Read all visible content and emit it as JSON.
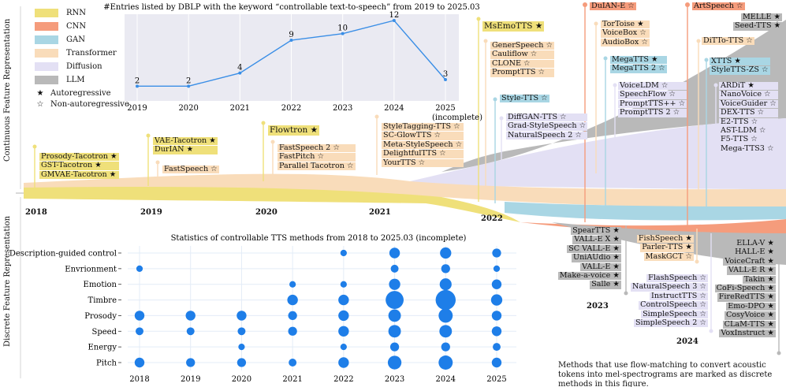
{
  "side_labels": {
    "continuous": "Continuous Feature Representation",
    "discrete": "Discrete Feature Representation"
  },
  "legend": {
    "items": [
      {
        "name": "RNN",
        "color": "#efe07a"
      },
      {
        "name": "CNN",
        "color": "#f59c7c"
      },
      {
        "name": "GAN",
        "color": "#a9d6e4"
      },
      {
        "name": "Transformer",
        "color": "#f9dcba"
      },
      {
        "name": "Diffusion",
        "color": "#e3e0f4"
      },
      {
        "name": "LLM",
        "color": "#b9b9b9"
      }
    ],
    "autoregressive": "Autoregressive",
    "non_autoregressive": "Non-autoregressive",
    "ar_symbol": "★",
    "nar_symbol": "☆"
  },
  "timeline_years": [
    "2018",
    "2019",
    "2020",
    "2021",
    "2022",
    "2023",
    "2024"
  ],
  "continuous_methods": {
    "y2018": [
      "Prosody-Tacotron ★",
      "GST-Tacotron ★",
      "GMVAE-Tacotron ★"
    ],
    "y2019a": [
      "VAE-Tacotron ★",
      "DurIAN ★"
    ],
    "y2019b": [
      "FastSpeech ☆"
    ],
    "y2020a": [
      "Flowtron ★"
    ],
    "y2020b": [
      "FastSpeech 2 ☆",
      "FastPitch ☆",
      "Parallel Tacotron ☆"
    ],
    "y2021": [
      "StyleTagging-TTS ☆",
      "SC-GlowTTS ☆",
      "Meta-StyleSpeech ☆",
      "DelightfulTTS ☆",
      "YourTTS ☆"
    ],
    "y2022a": [
      "MsEmoTTS ★"
    ],
    "y2022b": [
      "GenerSpeech ☆",
      "Cauliflow ☆",
      "CLONE ☆",
      "PromptTTS ☆"
    ],
    "y2022c": [
      "Style-TTS ☆"
    ],
    "y2022d": [
      "DiffGAN-TTS ☆",
      "Grad-StyleSpeech ☆",
      "NaturalSpeech 2 ☆"
    ],
    "y2023a": [
      "DuIAN-E ☆"
    ],
    "y2023b": [
      "TorToise ★",
      "VoiceBox ☆",
      "AudioBox ☆"
    ],
    "y2023c": [
      "MegaTTS ★",
      "MegaTTS 2 ☆"
    ],
    "y2023d": [
      "VoiceLDM ☆",
      "SpeechFlow ☆",
      "PromptTTS++ ☆",
      "PromptTTS 2 ☆"
    ],
    "y2024a": [
      "ArtSpeech ☆"
    ],
    "y2024b": [
      "DiTTo-TTS ☆"
    ],
    "y2024c": [
      "XTTS ★",
      "StyleTTS-ZS ☆"
    ],
    "y2024d": [
      "ARDiT ★",
      "NanoVoice ☆",
      "VoiceGuider ☆",
      "DEX-TTS ☆",
      "E2-TTS ☆",
      "AST-LDM ☆",
      "F5-TTS ☆",
      "Mega-TTS3 ☆"
    ],
    "y2024e": [
      "MELLE ★",
      "Seed-TTS ★"
    ]
  },
  "discrete_methods": {
    "y2023a": [
      "SpearTTS ★",
      "VALL-E X ★",
      "SC VALL-E ★",
      "UniAUdio ★",
      "VALL-E ★",
      "Make-a-voice ★",
      "Salle ★"
    ],
    "y2024a": [
      "FishSpeech ★",
      "Parler-TTS ★",
      "MaskGCT ☆"
    ],
    "y2024b": [
      "FlashSpeech ☆",
      "NaturalSpeech 3 ☆",
      "InstructTTS ☆",
      "ControlSpeech ☆",
      "SimpleSpeech ☆",
      "SimpleSpeech 2 ☆"
    ],
    "y2024c": [
      "ELLA-V ★",
      "HALL-E ★",
      "VoiceCraft ★",
      "VALL-E R ★",
      "Takin ★",
      "CoFi-Speech ★",
      "FireRedTTS ★",
      "Emo-DPO ★",
      "CosyVoice ★",
      "CLaM-TTS ★",
      "VoxInstruct ★"
    ],
    "year_2023": "2023",
    "year_2024": "2024"
  },
  "note": "Methods that use flow-matching to convert acoustic tokens into mel-spectrograms are marked as discrete methods in this figure.",
  "chart_data": [
    {
      "type": "line",
      "title": "#Entries listed by DBLP with the keyword “controllable text-to-speech” from 2019 to 2025.03",
      "categories": [
        "2019",
        "2020",
        "2021",
        "2022",
        "2023",
        "2024",
        "2025"
      ],
      "values": [
        2,
        2,
        4,
        9,
        10,
        12,
        3
      ],
      "ylim": [
        0,
        12
      ],
      "annotation": "(incomplete)",
      "color": "#3a8ee6"
    },
    {
      "type": "scatter",
      "title": "Statistics of controllable TTS methods from 2018 to 2025.03 (incomplete)",
      "x": [
        "2018",
        "2019",
        "2020",
        "2021",
        "2022",
        "2023",
        "2024",
        "2025"
      ],
      "y": [
        "Description-guided control",
        "Envrionment",
        "Emotion",
        "Timbre",
        "Prosody",
        "Speed",
        "Energy",
        "Pitch"
      ],
      "color": "#1e7ee8",
      "points": [
        {
          "x": "2022",
          "y": "Description-guided control",
          "v": 1
        },
        {
          "x": "2023",
          "y": "Description-guided control",
          "v": 5
        },
        {
          "x": "2024",
          "y": "Description-guided control",
          "v": 6
        },
        {
          "x": "2025",
          "y": "Description-guided control",
          "v": 3
        },
        {
          "x": "2018",
          "y": "Envrionment",
          "v": 1
        },
        {
          "x": "2023",
          "y": "Envrionment",
          "v": 2
        },
        {
          "x": "2024",
          "y": "Envrionment",
          "v": 3
        },
        {
          "x": "2025",
          "y": "Envrionment",
          "v": 1
        },
        {
          "x": "2021",
          "y": "Emotion",
          "v": 1
        },
        {
          "x": "2022",
          "y": "Emotion",
          "v": 1
        },
        {
          "x": "2023",
          "y": "Emotion",
          "v": 6
        },
        {
          "x": "2024",
          "y": "Emotion",
          "v": 7
        },
        {
          "x": "2025",
          "y": "Emotion",
          "v": 4
        },
        {
          "x": "2021",
          "y": "Timbre",
          "v": 5
        },
        {
          "x": "2022",
          "y": "Timbre",
          "v": 5
        },
        {
          "x": "2023",
          "y": "Timbre",
          "v": 20
        },
        {
          "x": "2024",
          "y": "Timbre",
          "v": 26
        },
        {
          "x": "2025",
          "y": "Timbre",
          "v": 6
        },
        {
          "x": "2018",
          "y": "Prosody",
          "v": 4
        },
        {
          "x": "2019",
          "y": "Prosody",
          "v": 4
        },
        {
          "x": "2020",
          "y": "Prosody",
          "v": 4
        },
        {
          "x": "2021",
          "y": "Prosody",
          "v": 3
        },
        {
          "x": "2022",
          "y": "Prosody",
          "v": 5
        },
        {
          "x": "2023",
          "y": "Prosody",
          "v": 8
        },
        {
          "x": "2024",
          "y": "Prosody",
          "v": 11
        },
        {
          "x": "2025",
          "y": "Prosody",
          "v": 4
        },
        {
          "x": "2018",
          "y": "Speed",
          "v": 2
        },
        {
          "x": "2019",
          "y": "Speed",
          "v": 2
        },
        {
          "x": "2020",
          "y": "Speed",
          "v": 2
        },
        {
          "x": "2021",
          "y": "Speed",
          "v": 3
        },
        {
          "x": "2022",
          "y": "Speed",
          "v": 5
        },
        {
          "x": "2023",
          "y": "Speed",
          "v": 8
        },
        {
          "x": "2024",
          "y": "Speed",
          "v": 8
        },
        {
          "x": "2025",
          "y": "Speed",
          "v": 4
        },
        {
          "x": "2020",
          "y": "Energy",
          "v": 1
        },
        {
          "x": "2022",
          "y": "Energy",
          "v": 1
        },
        {
          "x": "2023",
          "y": "Energy",
          "v": 3
        },
        {
          "x": "2024",
          "y": "Energy",
          "v": 3
        },
        {
          "x": "2025",
          "y": "Energy",
          "v": 2
        },
        {
          "x": "2018",
          "y": "Pitch",
          "v": 4
        },
        {
          "x": "2019",
          "y": "Pitch",
          "v": 3
        },
        {
          "x": "2020",
          "y": "Pitch",
          "v": 3
        },
        {
          "x": "2021",
          "y": "Pitch",
          "v": 2
        },
        {
          "x": "2022",
          "y": "Pitch",
          "v": 5
        },
        {
          "x": "2023",
          "y": "Pitch",
          "v": 10
        },
        {
          "x": "2024",
          "y": "Pitch",
          "v": 11
        },
        {
          "x": "2025",
          "y": "Pitch",
          "v": 4
        }
      ]
    }
  ]
}
